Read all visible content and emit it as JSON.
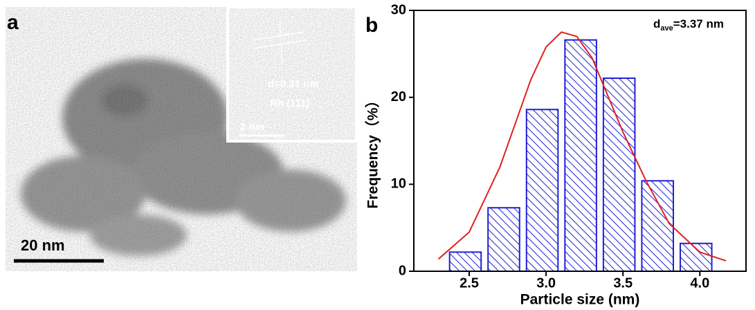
{
  "panel_a": {
    "label": "a",
    "scale_bar": "20 nm",
    "inset": {
      "spacing": "d=0.21 nm",
      "plane": "Rh (111)",
      "scale_bar": "2 nm"
    }
  },
  "chart_data": {
    "type": "histogram",
    "panel_label": "b",
    "xlabel": "Particle size (nm)",
    "ylabel": "Frequency（%）",
    "annotation": {
      "symbol": "d",
      "subscript": "ave",
      "text": "=3.37 nm"
    },
    "bins": [
      2.35,
      2.6,
      2.85,
      3.1,
      3.35,
      3.6,
      3.85,
      4.1
    ],
    "values": [
      2.2,
      7.3,
      18.6,
      26.6,
      22.2,
      10.4,
      3.2
    ],
    "color": "#1f1fd6",
    "xlim": [
      2.14,
      4.3
    ],
    "ylim": [
      0,
      30
    ],
    "xticks": [
      2.5,
      {
        "value": 3,
        "label": "3.0"
      },
      3.5,
      {
        "value": 4,
        "label": "4.0"
      }
    ],
    "yticks": [
      0,
      10,
      20,
      30
    ],
    "fit": {
      "x": [
        2.3,
        2.5,
        2.7,
        2.9,
        3.0,
        3.1,
        3.2,
        3.3,
        3.5,
        3.65,
        3.8,
        4.0,
        4.17
      ],
      "values": [
        1.4,
        4.5,
        12.0,
        22.0,
        25.8,
        27.5,
        27.0,
        24.5,
        16.0,
        10.4,
        5.5,
        2.2,
        1.2
      ],
      "color": "#e02020"
    }
  }
}
